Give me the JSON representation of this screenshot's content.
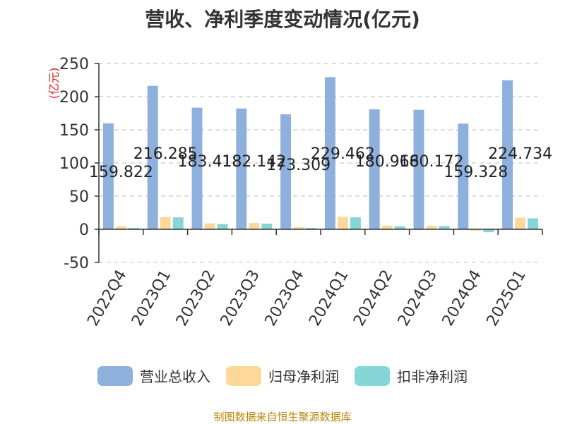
{
  "source_note": "制图数据来自恒生聚源数据库",
  "chart_data": {
    "type": "bar",
    "title": "营收、净利季度变动情况(亿元)",
    "ylabel": "(亿元)",
    "ylim": [
      -50,
      250
    ],
    "yticks": [
      -50,
      0,
      50,
      100,
      150,
      200,
      250
    ],
    "grid": true,
    "legend_position": "bottom",
    "categories": [
      "2022Q4",
      "2023Q1",
      "2023Q2",
      "2023Q3",
      "2023Q4",
      "2024Q1",
      "2024Q2",
      "2024Q3",
      "2024Q4",
      "2025Q1"
    ],
    "data_labels": [
      "159.822",
      "216.285",
      "183.418",
      "182.142",
      "173.309",
      "229.462",
      "180.966",
      "180.172",
      "159.328",
      "224.734"
    ],
    "series": [
      {
        "name": "营业总收入",
        "color": "#8eb0dd",
        "values": [
          159.822,
          216.285,
          183.418,
          182.142,
          173.309,
          229.462,
          180.966,
          180.172,
          159.328,
          224.734
        ]
      },
      {
        "name": "归母净利润",
        "color": "#fdd89a",
        "values": [
          4.5,
          18.5,
          9.0,
          9.5,
          3.0,
          19.0,
          5.5,
          5.5,
          -2.0,
          17.5
        ]
      },
      {
        "name": "扣非净利润",
        "color": "#86d6d8",
        "values": [
          2.0,
          18.0,
          8.0,
          8.5,
          2.0,
          18.0,
          4.5,
          5.0,
          -4.5,
          16.5
        ]
      }
    ]
  }
}
